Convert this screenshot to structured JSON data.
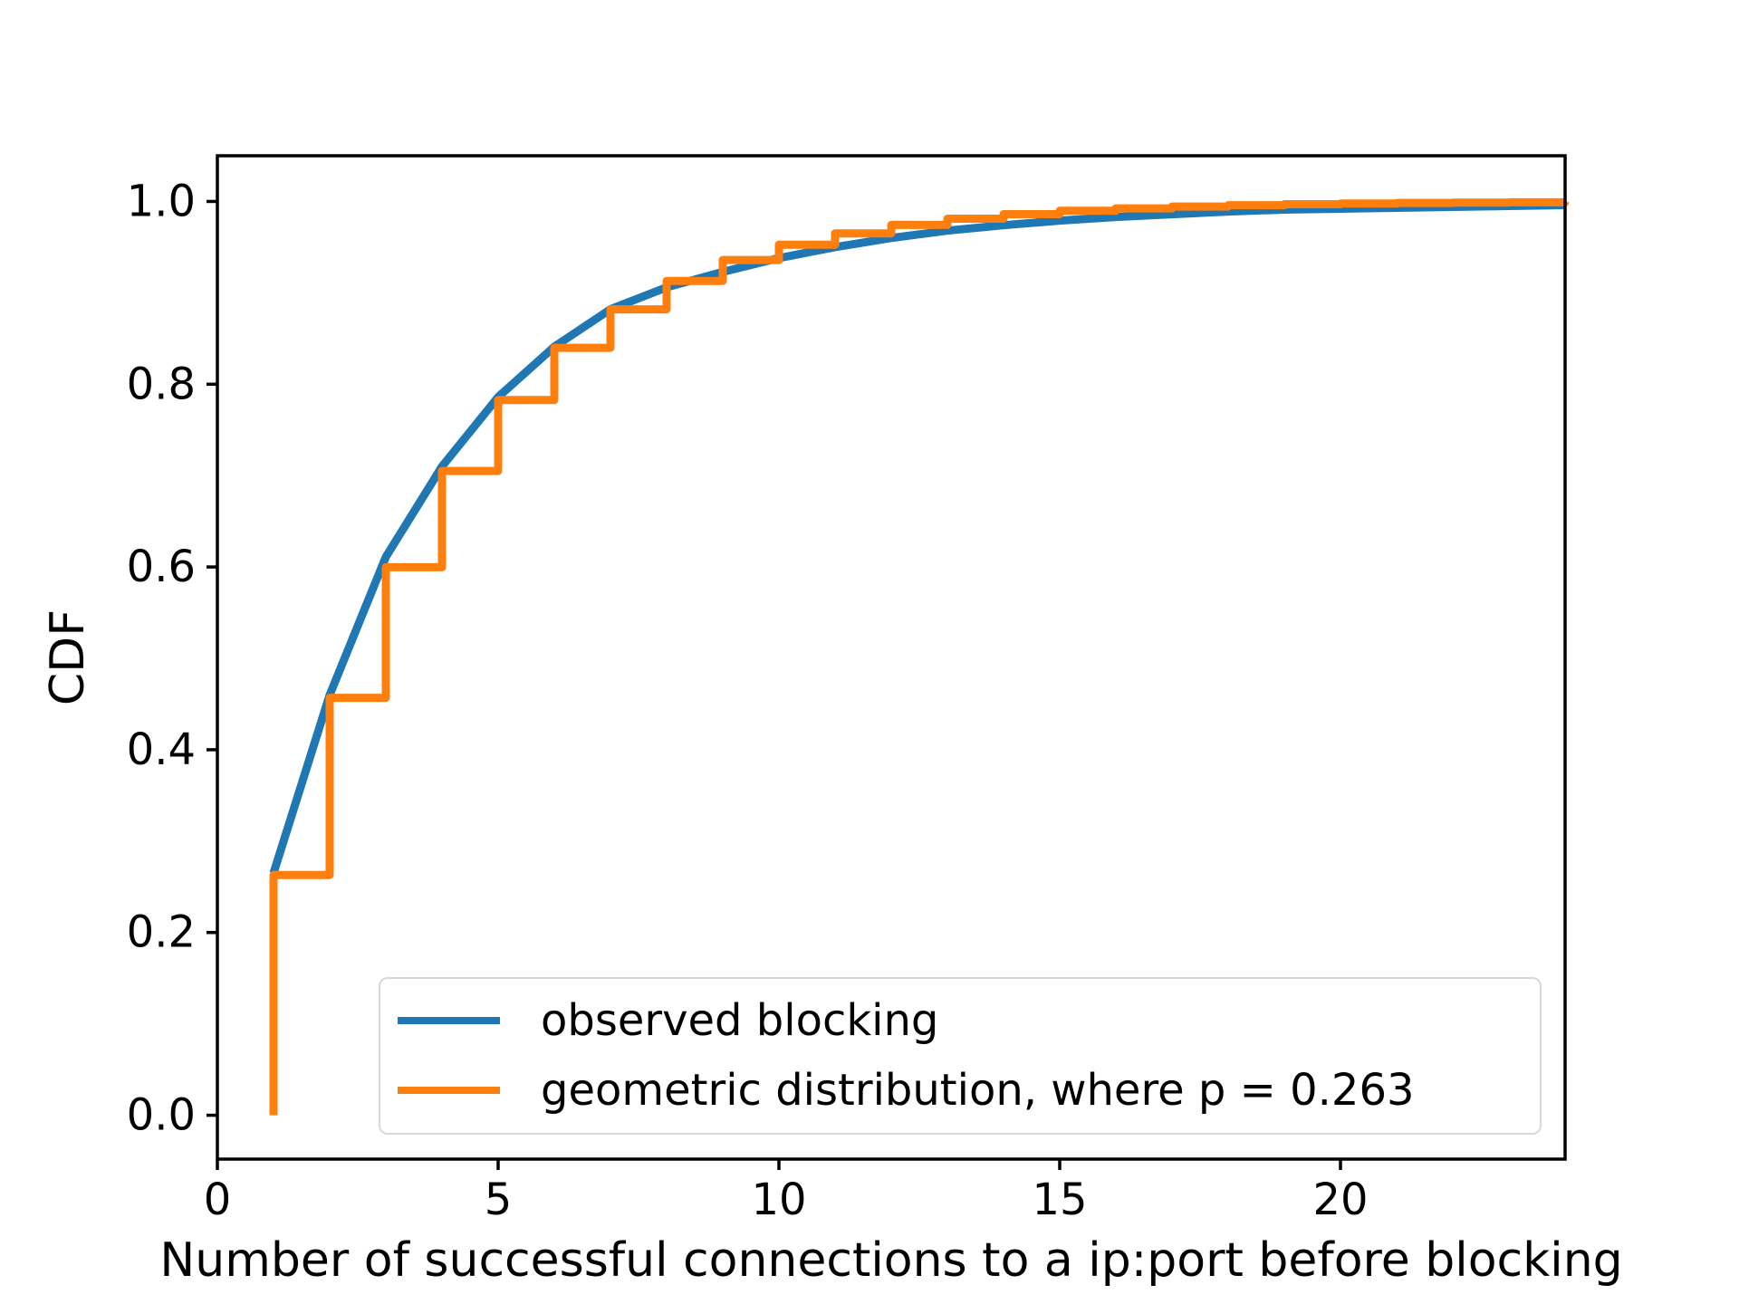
{
  "figure": {
    "background_color": "#ffffff",
    "text_color": "#000000",
    "spine_color": "#000000",
    "legend_border_color": "#d9d9d9",
    "legend_background_color": "#ffffff"
  },
  "chart_data": {
    "type": "line",
    "title": "",
    "xlabel": "Number of successful connections to a ip:port before blocking",
    "ylabel": "CDF",
    "xlim": [
      0,
      24
    ],
    "ylim": [
      -0.048,
      1.05
    ],
    "xticks": [
      0,
      5,
      10,
      15,
      20
    ],
    "xtick_labels": [
      "0",
      "5",
      "10",
      "15",
      "20"
    ],
    "yticks": [
      0.0,
      0.2,
      0.4,
      0.6,
      0.8,
      1.0
    ],
    "ytick_labels": [
      "0.0",
      "0.2",
      "0.4",
      "0.6",
      "0.8",
      "1.0"
    ],
    "grid": false,
    "legend_position": "lower right",
    "series": [
      {
        "name": "observed blocking",
        "color": "#1f77b4",
        "draw": "line",
        "line_width": 9,
        "x": [
          1,
          2,
          3,
          4,
          5,
          6,
          7,
          8,
          9,
          10,
          11,
          12,
          13,
          14,
          15,
          16,
          17,
          18,
          19,
          20,
          21,
          22,
          23,
          24
        ],
        "y": [
          0.265,
          0.46,
          0.611,
          0.71,
          0.786,
          0.841,
          0.882,
          0.906,
          0.923,
          0.938,
          0.95,
          0.96,
          0.968,
          0.974,
          0.979,
          0.983,
          0.986,
          0.989,
          0.991,
          0.992,
          0.993,
          0.994,
          0.995,
          0.996
        ]
      },
      {
        "name": "geometric distribution, where p = 0.263",
        "color": "#ff7f0e",
        "draw": "step-post",
        "line_width": 9,
        "p": 0.263,
        "start_point": {
          "x": 1,
          "y": 0.0
        },
        "x": [
          1,
          2,
          3,
          4,
          5,
          6,
          7,
          8,
          9,
          10,
          11,
          12,
          13,
          14,
          15,
          16,
          17,
          18,
          19,
          20,
          21,
          22,
          23,
          24
        ],
        "y": [
          0.263,
          0.4568,
          0.5997,
          0.705,
          0.7826,
          0.8398,
          0.8819,
          0.913,
          0.9359,
          0.9527,
          0.9651,
          0.9743,
          0.9811,
          0.9861,
          0.9897,
          0.9924,
          0.9944,
          0.9959,
          0.997,
          0.9978,
          0.9984,
          0.9988,
          0.9991,
          0.9993
        ]
      }
    ]
  }
}
